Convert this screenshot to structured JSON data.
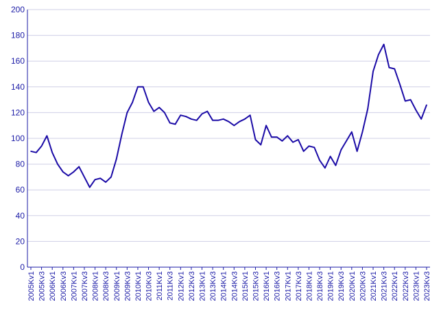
{
  "chart_data": {
    "type": "line",
    "title": "",
    "xlabel": "",
    "ylabel": "",
    "ylim": [
      0,
      200
    ],
    "yticks": [
      0,
      20,
      40,
      60,
      80,
      100,
      120,
      140,
      160,
      180,
      200
    ],
    "grid": "horizontal",
    "legend": "none",
    "colors": {
      "line": "#1a0aa6",
      "text": "#1a1aa6",
      "grid": "#cfcfe6",
      "axis": "#1a1aa6"
    },
    "categories": [
      "2005Kv1",
      "2005Kv2",
      "2005Kv3",
      "2005Kv4",
      "2006Kv1",
      "2006Kv2",
      "2006Kv3",
      "2006Kv4",
      "2007Kv1",
      "2007Kv2",
      "2007Kv3",
      "2007Kv4",
      "2008Kv1",
      "2008Kv2",
      "2008Kv3",
      "2008Kv4",
      "2009Kv1",
      "2009Kv2",
      "2009Kv3",
      "2009Kv4",
      "2010Kv1",
      "2010Kv2",
      "2010Kv3",
      "2010Kv4",
      "2011Kv1",
      "2011Kv2",
      "2011Kv3",
      "2011Kv4",
      "2012Kv1",
      "2012Kv2",
      "2012Kv3",
      "2012Kv4",
      "2013Kv1",
      "2013Kv2",
      "2013Kv3",
      "2013Kv4",
      "2014Kv1",
      "2014Kv2",
      "2014Kv3",
      "2014Kv4",
      "2015Kv1",
      "2015Kv2",
      "2015Kv3",
      "2015Kv4",
      "2016Kv1",
      "2016Kv2",
      "2016Kv3",
      "2016Kv4",
      "2017Kv1",
      "2017Kv2",
      "2017Kv3",
      "2017Kv4",
      "2018Kv1",
      "2018Kv2",
      "2018Kv3",
      "2018Kv4",
      "2019Kv1",
      "2019Kv2",
      "2019Kv3",
      "2019Kv4",
      "2020Kv1",
      "2020Kv2",
      "2020Kv3",
      "2020Kv4",
      "2021Kv1",
      "2021Kv2",
      "2021Kv3",
      "2021Kv4",
      "2022Kv1",
      "2022Kv2",
      "2022Kv3",
      "2022Kv4",
      "2023Kv1",
      "2023Kv2",
      "2023Kv3"
    ],
    "tick_labels": [
      "2005Kv1",
      "2005Kv3",
      "2006Kv1",
      "2006Kv3",
      "2007Kv1",
      "2007Kv3",
      "2008Kv1",
      "2008Kv3",
      "2009Kv1",
      "2009Kv3",
      "2010Kv1",
      "2010Kv3",
      "2011Kv1",
      "2011Kv3",
      "2012Kv1",
      "2012Kv3",
      "2013Kv1",
      "2013Kv3",
      "2014Kv1",
      "2014Kv3",
      "2015Kv1",
      "2015Kv3",
      "2016Kv1",
      "2016Kv3",
      "2017Kv1",
      "2017Kv3",
      "2018Kv1",
      "2018Kv3",
      "2019Kv1",
      "2019Kv3",
      "2020Kv1",
      "2020Kv3",
      "2021Kv1",
      "2021Kv3",
      "2022Kv1",
      "2022Kv3",
      "2023Kv1",
      "2023Kv3"
    ],
    "series": [
      {
        "values": [
          90,
          89,
          94,
          102,
          89,
          80,
          74,
          71,
          74,
          78,
          70,
          62,
          68,
          69,
          66,
          70,
          84,
          103,
          120,
          128,
          140,
          140,
          128,
          121,
          124,
          120,
          112,
          111,
          118,
          117,
          115,
          114,
          119,
          121,
          114,
          114,
          115,
          113,
          110,
          113,
          115,
          118,
          99,
          95,
          110,
          101,
          101,
          98,
          102,
          97,
          99,
          90,
          94,
          93,
          83,
          77,
          86,
          79,
          91,
          98,
          105,
          90,
          105,
          123,
          152,
          165,
          173,
          155,
          154,
          142,
          129,
          130,
          122,
          115,
          126
        ]
      }
    ]
  }
}
